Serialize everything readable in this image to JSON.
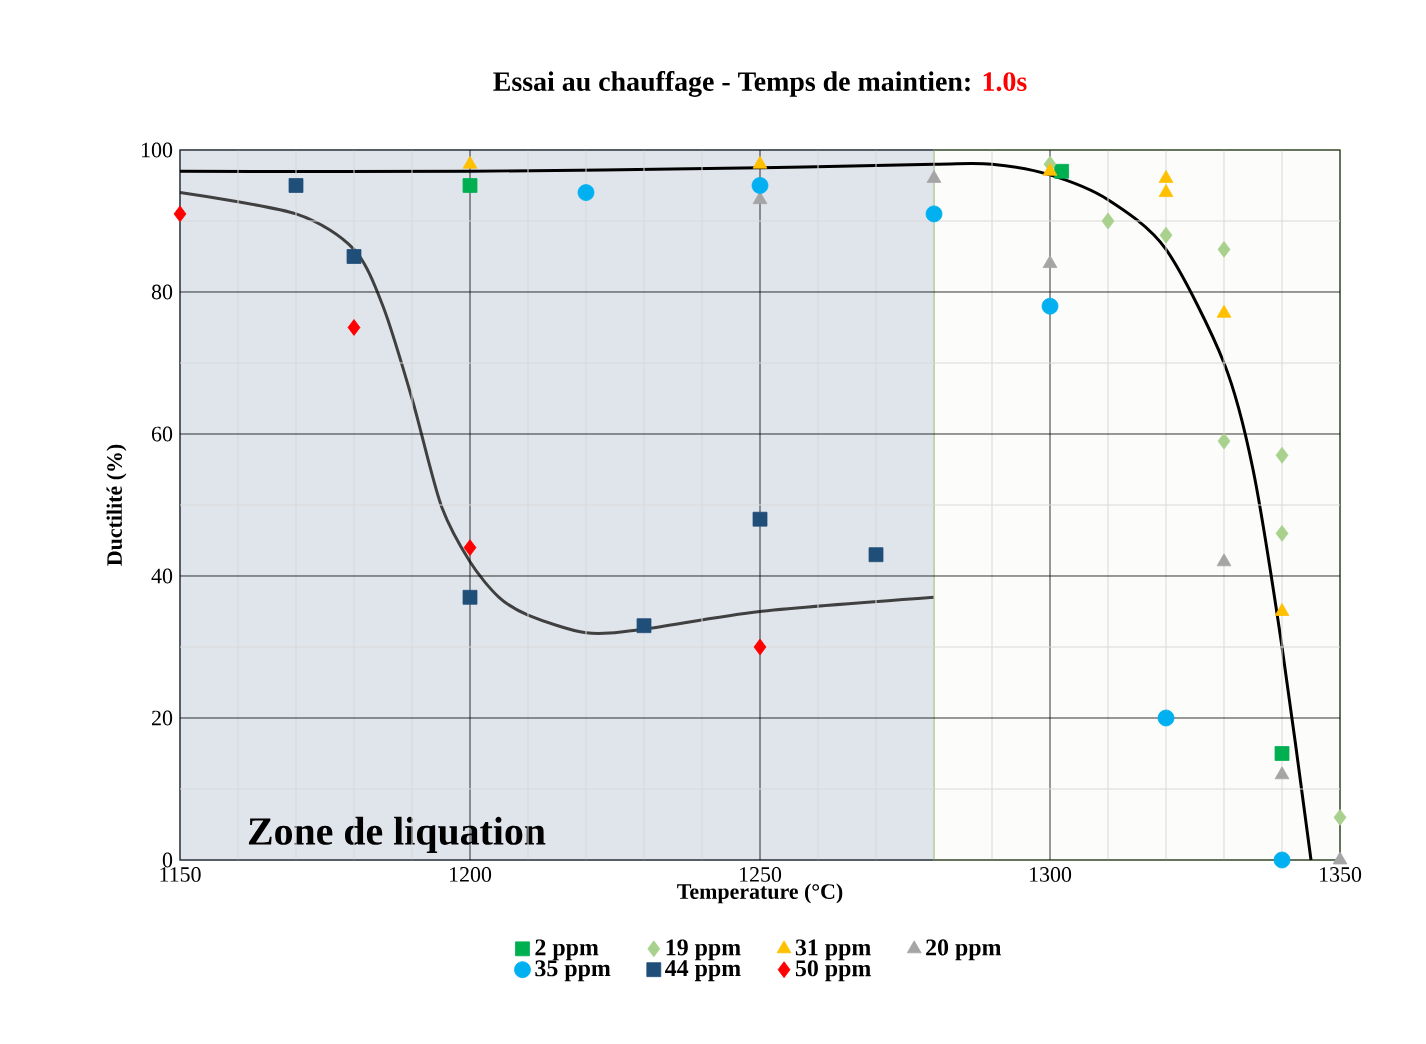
{
  "chart_data": {
    "type": "scatter",
    "title": "Essai au chauffage - Temps de maintien:",
    "subtitle": "1.0s",
    "xlabel": "Temperature (°C)",
    "ylabel": "Ductilité (%)",
    "xlim": [
      1150,
      1350
    ],
    "xticks": [
      1150,
      1200,
      1250,
      1300,
      1350
    ],
    "ylim": [
      0,
      100
    ],
    "yticks": [
      0,
      20,
      40,
      60,
      80,
      100
    ],
    "grid": true,
    "legend": "bottom",
    "bands": [
      {
        "axis": "x",
        "from": 1150,
        "to": 1280,
        "label": "Zone de liquation",
        "color": "#8497b0"
      },
      {
        "axis": "x",
        "from": 1280,
        "to": 1350,
        "color": "#a9d18e"
      }
    ],
    "series": [
      {
        "name": "2 ppm",
        "color": "#00b050",
        "marker": "square",
        "x": [
          1200,
          1302,
          1340
        ],
        "values": [
          95,
          97,
          15
        ]
      },
      {
        "name": "19 ppm",
        "color": "#a9d18e",
        "marker": "diamond",
        "x": [
          1300,
          1310,
          1320,
          1330,
          1330,
          1340,
          1340,
          1350
        ],
        "values": [
          98,
          90,
          88,
          86,
          59,
          57,
          46,
          6
        ]
      },
      {
        "name": "31 ppm",
        "color": "#ffc000",
        "marker": "triangle",
        "x": [
          1200,
          1250,
          1300,
          1320,
          1320,
          1330,
          1340
        ],
        "values": [
          98,
          98,
          97,
          96,
          94,
          77,
          35
        ]
      },
      {
        "name": "20 ppm",
        "color": "#a5a5a5",
        "marker": "triangle",
        "x": [
          1250,
          1280,
          1300,
          1330,
          1340,
          1350
        ],
        "values": [
          93,
          96,
          84,
          42,
          12,
          0
        ]
      },
      {
        "name": "35 ppm",
        "color": "#00b0f0",
        "marker": "circle",
        "x": [
          1220,
          1250,
          1280,
          1300,
          1320,
          1340
        ],
        "values": [
          94,
          95,
          91,
          78,
          20,
          0
        ]
      },
      {
        "name": "44 ppm",
        "color": "#1f4e79",
        "marker": "square",
        "x": [
          1170,
          1180,
          1200,
          1230,
          1250,
          1270
        ],
        "values": [
          95,
          85,
          37,
          33,
          48,
          43
        ]
      },
      {
        "name": "50 ppm",
        "color": "#ff0000",
        "marker": "diamond",
        "x": [
          1150,
          1180,
          1200,
          1250
        ],
        "values": [
          91,
          75,
          44,
          30
        ]
      },
      {
        "type": "line",
        "color": "#000000",
        "x": [
          1150,
          1200,
          1250,
          1280,
          1290,
          1300,
          1310,
          1320,
          1330,
          1335,
          1340,
          1345
        ],
        "values": [
          97,
          97,
          97.5,
          98,
          98,
          96.5,
          93,
          86,
          70,
          55,
          30,
          0
        ]
      },
      {
        "type": "line",
        "color": "#404040",
        "x": [
          1150,
          1170,
          1180,
          1185,
          1190,
          1195,
          1200,
          1205,
          1210,
          1220,
          1230,
          1250,
          1280
        ],
        "values": [
          94,
          91,
          86,
          78,
          65,
          50,
          42,
          37,
          34.5,
          32,
          32.5,
          35,
          37
        ]
      }
    ]
  }
}
